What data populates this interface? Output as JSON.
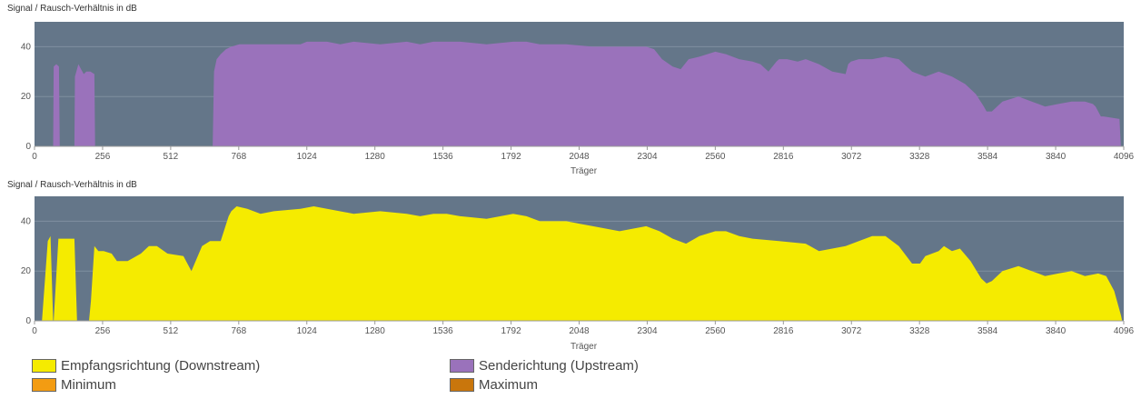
{
  "chart_data": [
    {
      "type": "area",
      "ylabel": "Signal / Rausch-Verhältnis in dB",
      "xlabel": "Träger",
      "xlim": [
        0,
        4096
      ],
      "ylim": [
        0,
        50
      ],
      "xticks": [
        0,
        256,
        512,
        768,
        1024,
        1280,
        1536,
        1792,
        2048,
        2304,
        2560,
        2816,
        3072,
        3328,
        3584,
        3840,
        4096
      ],
      "yticks": [
        0,
        20,
        40
      ],
      "grid": true,
      "series": [
        {
          "name": "Senderichtung (Upstream)",
          "color": "#9a72bb",
          "x": [
            70,
            72,
            82,
            92,
            95,
            150,
            152,
            165,
            175,
            185,
            195,
            210,
            225,
            228,
            670,
            675,
            685,
            700,
            720,
            740,
            770,
            800,
            900,
            1000,
            1024,
            1100,
            1150,
            1200,
            1300,
            1400,
            1450,
            1500,
            1600,
            1700,
            1800,
            1850,
            1900,
            2000,
            2100,
            2200,
            2300,
            2330,
            2360,
            2400,
            2430,
            2460,
            2500,
            2560,
            2600,
            2650,
            2700,
            2730,
            2760,
            2790,
            2800,
            2830,
            2870,
            2900,
            2950,
            3000,
            3050,
            3060,
            3070,
            3100,
            3150,
            3200,
            3250,
            3300,
            3350,
            3400,
            3450,
            3500,
            3540,
            3570,
            3580,
            3600,
            3640,
            3700,
            3750,
            3800,
            3850,
            3900,
            3950,
            3980,
            3990,
            4010,
            4020,
            4080,
            4085,
            4086
          ],
          "values": [
            0,
            32,
            33,
            32,
            0,
            0,
            28,
            33,
            31,
            29,
            30,
            30,
            29,
            0,
            0,
            30,
            35,
            37,
            39,
            40,
            41,
            41,
            41,
            41,
            42,
            42,
            41,
            42,
            41,
            42,
            41,
            42,
            42,
            41,
            42,
            42,
            41,
            41,
            40,
            40,
            40,
            39,
            35,
            32,
            31,
            35,
            36,
            38,
            37,
            35,
            34,
            33,
            30,
            34,
            35,
            35,
            34,
            35,
            33,
            30,
            29,
            33,
            34,
            35,
            35,
            36,
            35,
            30,
            28,
            30,
            28,
            25,
            21,
            16,
            14,
            14,
            18,
            20,
            18,
            16,
            17,
            18,
            18,
            17,
            16,
            12,
            12,
            11,
            0,
            0
          ]
        }
      ]
    },
    {
      "type": "area",
      "ylabel": "Signal / Rausch-Verhältnis in dB",
      "xlabel": "Träger",
      "xlim": [
        0,
        4096
      ],
      "ylim": [
        0,
        50
      ],
      "xticks": [
        0,
        256,
        512,
        768,
        1024,
        1280,
        1536,
        1792,
        2048,
        2304,
        2560,
        2816,
        3072,
        3328,
        3584,
        3840,
        4096
      ],
      "yticks": [
        0,
        20,
        40
      ],
      "grid": true,
      "series": [
        {
          "name": "Empfangsrichtung (Downstream)",
          "color": "#f5eb00",
          "x": [
            28,
            50,
            60,
            70,
            72,
            90,
            98,
            110,
            150,
            160,
            165,
            205,
            212,
            225,
            240,
            260,
            290,
            310,
            350,
            400,
            430,
            460,
            500,
            560,
            590,
            630,
            660,
            700,
            730,
            740,
            760,
            800,
            850,
            900,
            1000,
            1050,
            1100,
            1200,
            1300,
            1400,
            1450,
            1500,
            1550,
            1600,
            1700,
            1800,
            1850,
            1900,
            2000,
            2100,
            2150,
            2200,
            2250,
            2300,
            2350,
            2400,
            2450,
            2500,
            2560,
            2600,
            2650,
            2700,
            2800,
            2900,
            2950,
            3000,
            3050,
            3100,
            3150,
            3200,
            3250,
            3300,
            3330,
            3350,
            3400,
            3420,
            3450,
            3480,
            3520,
            3560,
            3580,
            3600,
            3640,
            3700,
            3750,
            3800,
            3850,
            3900,
            3950,
            4000,
            4030,
            4060,
            4086,
            4090
          ],
          "values": [
            0,
            32,
            34,
            0,
            0,
            33,
            33,
            33,
            33,
            0,
            0,
            0,
            8,
            30,
            28,
            28,
            27,
            24,
            24,
            27,
            30,
            30,
            27,
            26,
            20,
            30,
            32,
            32,
            42,
            44,
            46,
            45,
            43,
            44,
            45,
            46,
            45,
            43,
            44,
            43,
            42,
            43,
            43,
            42,
            41,
            43,
            42,
            40,
            40,
            38,
            37,
            36,
            37,
            38,
            36,
            33,
            31,
            34,
            36,
            36,
            34,
            33,
            32,
            31,
            28,
            29,
            30,
            32,
            34,
            34,
            30,
            23,
            23,
            26,
            28,
            30,
            28,
            29,
            24,
            17,
            15,
            16,
            20,
            22,
            20,
            18,
            19,
            20,
            18,
            19,
            18,
            12,
            2,
            0
          ]
        }
      ]
    }
  ],
  "legend": {
    "items": [
      {
        "label": "Empfangsrichtung (Downstream)",
        "color": "#f5eb00"
      },
      {
        "label": "Senderichtung (Upstream)",
        "color": "#9a72bb"
      },
      {
        "label": "Minimum",
        "color": "#f39c12"
      },
      {
        "label": "Maximum",
        "color": "#c9760c"
      }
    ]
  },
  "plot_background": "#647689"
}
